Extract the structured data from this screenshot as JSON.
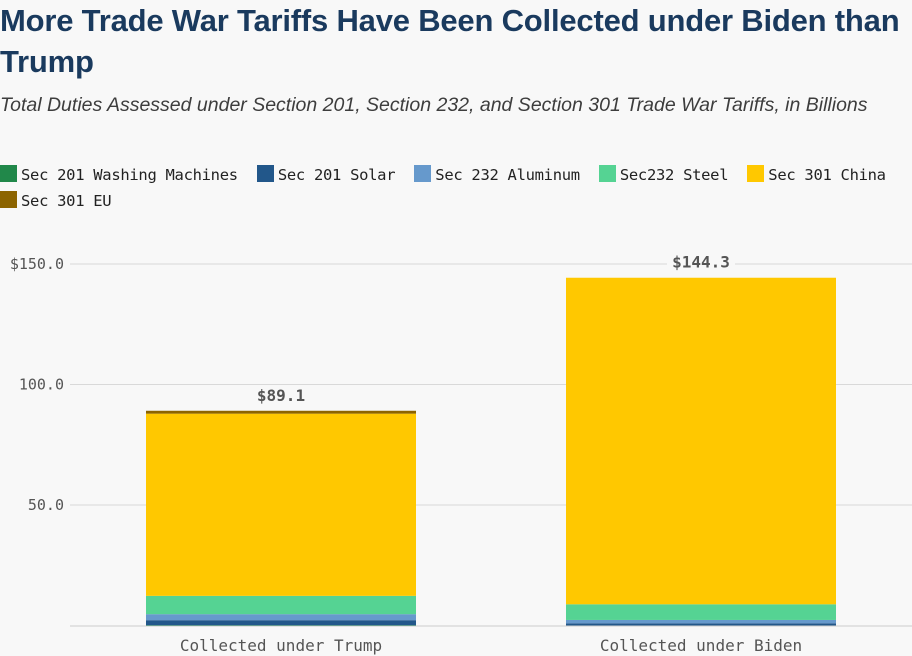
{
  "header": {
    "title": "More Trade War Tariffs Have Been Collected under Biden than Trump",
    "subtitle": "Total Duties Assessed under Section 201, Section 232, and Section 301 Trade War Tariffs, in Billions"
  },
  "chart_data": {
    "type": "bar",
    "stacked": true,
    "title": "More Trade War Tariffs Have Been Collected under Biden than Trump",
    "subtitle": "Total Duties Assessed under Section 201, Section 232, and Section 301 Trade War Tariffs, in Billions",
    "xlabel": "",
    "ylabel": "",
    "ylim": [
      0,
      150
    ],
    "y_ticks": [
      {
        "value": 50,
        "label": "50.0"
      },
      {
        "value": 100,
        "label": "100.0"
      },
      {
        "value": 150,
        "label": "$150.0"
      }
    ],
    "grid": true,
    "legend_position": "top",
    "categories": [
      "Collected under Trump",
      "Collected under Biden"
    ],
    "totals": [
      {
        "value": 89.1,
        "label": "$89.1"
      },
      {
        "value": 144.3,
        "label": "$144.3"
      }
    ],
    "series": [
      {
        "name": "Sec 201 Washing Machines",
        "color": "#21884a",
        "values": [
          0.1,
          0.0
        ]
      },
      {
        "name": "Sec 201 Solar",
        "color": "#22578a",
        "values": [
          2.1,
          0.9
        ]
      },
      {
        "name": "Sec 232 Aluminum",
        "color": "#6699cc",
        "values": [
          2.5,
          1.4
        ]
      },
      {
        "name": "Sec232 Steel",
        "color": "#55d393",
        "values": [
          7.6,
          6.5
        ]
      },
      {
        "name": "Sec 301 China",
        "color": "#ffc800",
        "values": [
          75.6,
          135.5
        ]
      },
      {
        "name": "Sec 301 EU",
        "color": "#8c6400",
        "values": [
          1.2,
          0.0
        ]
      }
    ]
  }
}
